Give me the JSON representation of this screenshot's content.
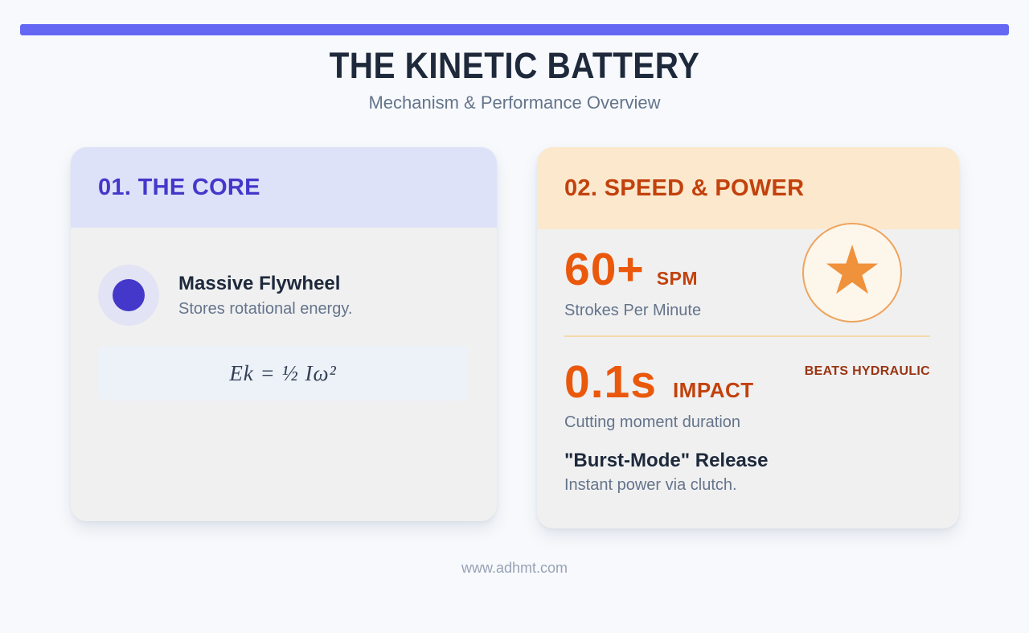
{
  "page": {
    "title": "THE KINETIC BATTERY",
    "subtitle": "Mechanism & Performance Overview",
    "footer": "www.adhmt.com"
  },
  "colors": {
    "top_bar": "#6467f2",
    "core_header_bg": "#dee2f8",
    "core_heading": "#4338ca",
    "speed_header_bg": "#fce8cd",
    "speed_heading": "#c2410c",
    "stat_orange": "#ea580c",
    "stat_unit_rust": "#c2410c",
    "tag_maroon": "#9a3412",
    "navy_text": "#1e293b",
    "gray_text": "#64748b",
    "card_body_bg": "#f0f0f1",
    "star_orange": "#f0913c"
  },
  "cards": {
    "core": {
      "heading": "01. THE CORE",
      "icon": "flywheel-disc",
      "feature": {
        "title": "Massive Flywheel",
        "description": "Stores rotational energy."
      },
      "formula": "Ek = ½ Iω²"
    },
    "speed_power": {
      "heading": "02. SPEED & POWER",
      "badge": {
        "icon": "star",
        "glyph": "★"
      },
      "stats": [
        {
          "value": "60+",
          "unit": "SPM",
          "label": "Strokes Per Minute"
        },
        {
          "value": "0.1s",
          "unit": "IMPACT",
          "tag": "BEATS HYDRAULIC",
          "label": "Cutting moment duration"
        }
      ],
      "feature": {
        "title": "\"Burst-Mode\" Release",
        "description": "Instant power via clutch."
      }
    }
  }
}
